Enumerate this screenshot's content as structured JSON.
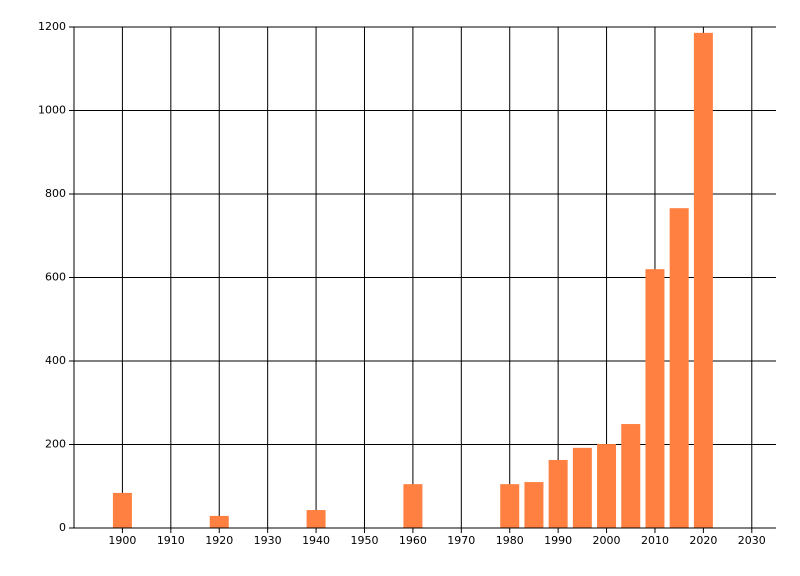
{
  "chart_data": {
    "type": "bar",
    "x": [
      1900,
      1920,
      1940,
      1960,
      1980,
      1985,
      1990,
      1995,
      2000,
      2005,
      2010,
      2015,
      2020
    ],
    "values": [
      84,
      29,
      43,
      105,
      105,
      110,
      163,
      192,
      201,
      249,
      620,
      766,
      1186
    ],
    "color": "#ff8040",
    "xlim": [
      1890,
      2035
    ],
    "xticks": [
      1900,
      1910,
      1920,
      1930,
      1940,
      1950,
      1960,
      1970,
      1980,
      1990,
      2000,
      2010,
      2020,
      2030
    ],
    "ylim": [
      0,
      1200
    ],
    "yticks": [
      0,
      200,
      400,
      600,
      800,
      1000,
      1200
    ],
    "grid": true
  }
}
